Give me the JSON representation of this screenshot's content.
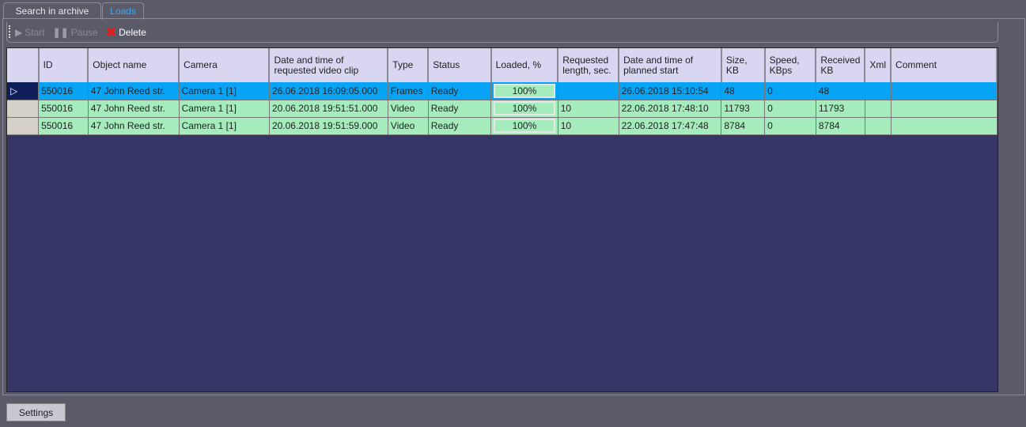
{
  "tabs": [
    {
      "label": "Search in archive",
      "active": false
    },
    {
      "label": "Loads",
      "active": true
    }
  ],
  "toolbar": {
    "start": "Start",
    "pause": "Pause",
    "delete": "Delete"
  },
  "columns": [
    "ID",
    "Object name",
    "Camera",
    "Date and time of requested video clip",
    "Type",
    "Status",
    "Loaded, %",
    "Requested length, sec.",
    "Date and time of planned start",
    "Size, KB",
    "Speed, KBps",
    "Received KB",
    "Xml",
    "Comment"
  ],
  "rows": [
    {
      "selected": true,
      "cells": [
        "550016",
        "47 John Reed str.",
        "Camera 1 [1]",
        "26.06.2018 16:09:05.000",
        "Frames",
        "Ready",
        "100%",
        "",
        "26.06.2018 15:10:54",
        "48",
        "0",
        "48",
        "",
        ""
      ]
    },
    {
      "selected": false,
      "cells": [
        "550016",
        "47 John Reed str.",
        "Camera 1 [1]",
        "20.06.2018 19:51:51.000",
        "Video",
        "Ready",
        "100%",
        "10",
        "22.06.2018 17:48:10",
        "11793",
        "0",
        "11793",
        "",
        ""
      ]
    },
    {
      "selected": false,
      "cells": [
        "550016",
        "47 John Reed str.",
        "Camera 1 [1]",
        "20.06.2018 19:51:59.000",
        "Video",
        "Ready",
        "100%",
        "10",
        "22.06.2018 17:47:48",
        "8784",
        "0",
        "8784",
        "",
        ""
      ]
    }
  ],
  "loaded_fraction": [
    1,
    1,
    1
  ],
  "settings_label": "Settings",
  "colors": {
    "selected_row": "#07a4f6",
    "ready_row": "#a4ecbc",
    "grid_bg": "#363666",
    "header_bg": "#d9d6f2",
    "active_tab": "#3fa8f0"
  }
}
